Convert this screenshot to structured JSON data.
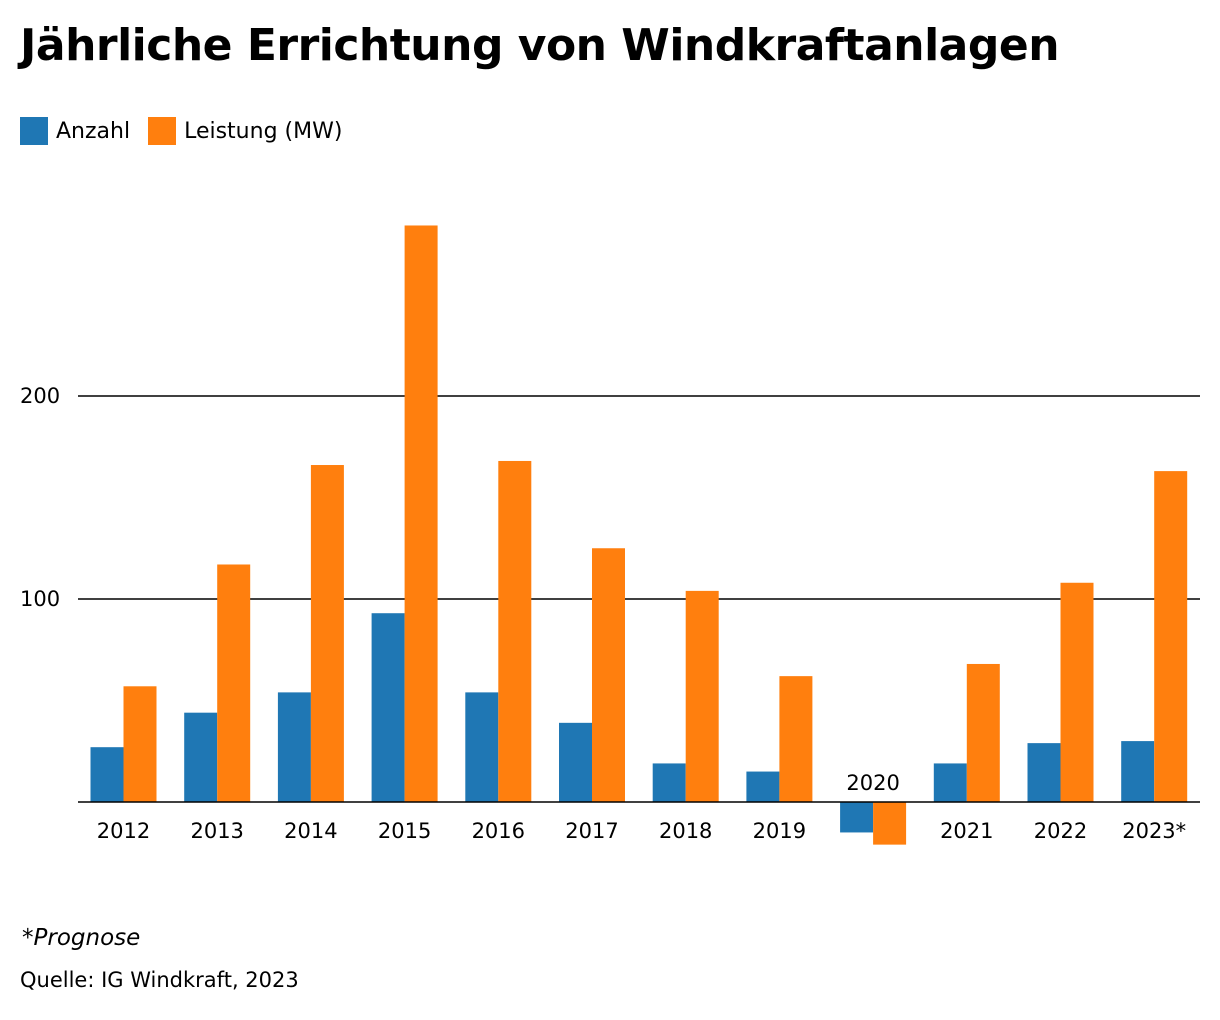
{
  "title": "Jährliche Errichtung von Windkraftanlagen",
  "legend": [
    {
      "label": "Anzahl",
      "color": "#1f77b4"
    },
    {
      "label": "Leistung (MW)",
      "color": "#ff7f0e"
    }
  ],
  "chart_data": {
    "type": "bar",
    "title": "Jährliche Errichtung von Windkraftanlagen",
    "xlabel": "",
    "ylabel": "",
    "ylim": [
      -25,
      300
    ],
    "yticks": [
      100,
      200
    ],
    "grid": true,
    "legend_position": "top-left",
    "categories": [
      "2012",
      "2013",
      "2014",
      "2015",
      "2016",
      "2017",
      "2018",
      "2019",
      "2020",
      "2021",
      "2022",
      "2023*"
    ],
    "series": [
      {
        "name": "Anzahl",
        "color": "#1f77b4",
        "values": [
          27,
          44,
          54,
          93,
          54,
          39,
          19,
          15,
          -15,
          19,
          29,
          30
        ]
      },
      {
        "name": "Leistung (MW)",
        "color": "#ff7f0e",
        "values": [
          57,
          117,
          166,
          284,
          168,
          125,
          104,
          62,
          -21,
          68,
          108,
          163
        ]
      }
    ]
  },
  "footnote": "*Prognose",
  "source": "Quelle: IG Windkraft, 2023"
}
